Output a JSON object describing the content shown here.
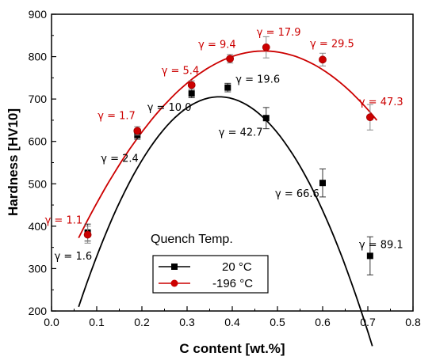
{
  "chart_data": {
    "type": "scatter",
    "xlabel": "C content [wt.%]",
    "ylabel": "Hardness [HV10]",
    "xlim": [
      0.0,
      0.8
    ],
    "ylim": [
      200,
      900
    ],
    "xticks": [
      "0.0",
      "0.1",
      "0.2",
      "0.3",
      "0.4",
      "0.5",
      "0.6",
      "0.7",
      "0.8"
    ],
    "yticks": [
      "200",
      "300",
      "400",
      "500",
      "600",
      "700",
      "800",
      "900"
    ],
    "legend_title": "Quench Temp.",
    "legend_placement": "bottom-center",
    "grid": false,
    "series": [
      {
        "name": "20 °C",
        "color": "#000000",
        "marker": "square",
        "x": [
          0.08,
          0.19,
          0.31,
          0.39,
          0.475,
          0.6,
          0.705
        ],
        "y": [
          385,
          615,
          713,
          727,
          655,
          502,
          330
        ],
        "err": [
          20,
          10,
          10,
          10,
          25,
          33,
          45
        ],
        "labels": [
          "γ = 1.6",
          "γ = 2.4",
          "γ = 10.0",
          "γ = 19.6",
          "γ = 42.7",
          "γ = 66.6",
          "γ = 89.1"
        ],
        "fit": [
          -5120,
          3800,
          0.18,
          0.06,
          0.71
        ]
      },
      {
        "name": "-196 °C",
        "color": "#cc0000",
        "marker": "circle",
        "x": [
          0.08,
          0.19,
          0.31,
          0.395,
          0.475,
          0.6,
          0.705
        ],
        "y": [
          380,
          625,
          733,
          795,
          822,
          793,
          657
        ],
        "err": [
          20,
          10,
          10,
          10,
          25,
          15,
          30
        ],
        "labels": [
          "γ = 1.1",
          "γ = 1.7",
          "γ = 5.4",
          "γ = 9.4",
          "γ = 17.9",
          "γ = 29.5",
          "γ = 47.3"
        ],
        "fit": [
          -2620,
          2464,
          234,
          0.06,
          0.72
        ]
      }
    ]
  }
}
